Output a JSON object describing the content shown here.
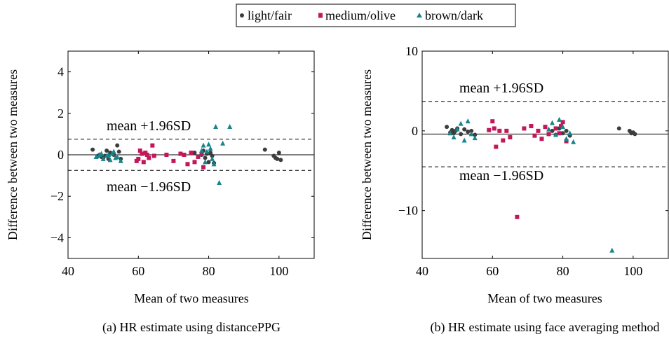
{
  "legend": {
    "items": [
      {
        "label": "light/fair",
        "color": "#3d3d3d",
        "marker": "circle"
      },
      {
        "label": "medium/olive",
        "color": "#c2185b",
        "marker": "square"
      },
      {
        "label": "brown/dark",
        "color": "#17858a",
        "marker": "triangle"
      }
    ],
    "placement": "top-center"
  },
  "chart_data": [
    {
      "type": "scatter",
      "caption": "(a) HR estimate using distancePPG",
      "xlabel": "Mean of two measures",
      "ylabel": "Difference between two measures",
      "xlim": [
        40,
        110
      ],
      "ylim": [
        -5,
        5
      ],
      "xticks": [
        40,
        60,
        80,
        100
      ],
      "yticks": [
        -4,
        -2,
        0,
        2,
        4
      ],
      "grid": false,
      "mean_line": 0,
      "upper_loa": 0.75,
      "lower_loa": -0.75,
      "upper_label": "mean +1.96SD",
      "lower_label": "mean −1.96SD",
      "series": [
        {
          "name": "light/fair",
          "points": [
            [
              47,
              0.25
            ],
            [
              48.5,
              -0.05
            ],
            [
              49,
              0.0
            ],
            [
              49.5,
              -0.1
            ],
            [
              50,
              -0.15
            ],
            [
              50.5,
              -0.05
            ],
            [
              51,
              0.2
            ],
            [
              51.5,
              -0.2
            ],
            [
              52,
              0.1
            ],
            [
              53,
              0.0
            ],
            [
              54,
              0.45
            ],
            [
              54.5,
              0.15
            ],
            [
              55,
              -0.2
            ],
            [
              76,
              0.1
            ],
            [
              77,
              -0.1
            ],
            [
              78,
              0.0
            ],
            [
              78.5,
              0.2
            ],
            [
              79,
              -0.15
            ],
            [
              79.5,
              0.05
            ],
            [
              80,
              -0.35
            ],
            [
              80.5,
              0.1
            ],
            [
              81,
              -0.05
            ],
            [
              81.5,
              -0.4
            ],
            [
              96,
              0.25
            ],
            [
              98.5,
              -0.05
            ],
            [
              99,
              -0.15
            ],
            [
              99.5,
              -0.2
            ],
            [
              100,
              0.1
            ],
            [
              100.5,
              -0.25
            ]
          ]
        },
        {
          "name": "medium/olive",
          "points": [
            [
              59.5,
              -0.3
            ],
            [
              60,
              -0.2
            ],
            [
              60.5,
              0.2
            ],
            [
              61,
              0.05
            ],
            [
              61.5,
              -0.35
            ],
            [
              62,
              0.1
            ],
            [
              62.5,
              0.0
            ],
            [
              63,
              -0.15
            ],
            [
              64,
              0.45
            ],
            [
              64.5,
              -0.05
            ],
            [
              68,
              0.0
            ],
            [
              70,
              -0.3
            ],
            [
              72,
              0.05
            ],
            [
              73,
              0.0
            ],
            [
              74,
              -0.45
            ],
            [
              75,
              0.1
            ],
            [
              76,
              -0.35
            ],
            [
              77,
              -0.1
            ],
            [
              78,
              0.05
            ],
            [
              78.5,
              -0.6
            ]
          ]
        },
        {
          "name": "brown/dark",
          "points": [
            [
              48,
              -0.1
            ],
            [
              49,
              0.0
            ],
            [
              49.5,
              0.05
            ],
            [
              50,
              -0.2
            ],
            [
              51,
              -0.05
            ],
            [
              51.5,
              0.0
            ],
            [
              52,
              -0.25
            ],
            [
              52.5,
              0.05
            ],
            [
              53,
              0.15
            ],
            [
              53.5,
              -0.15
            ],
            [
              54,
              -0.1
            ],
            [
              55,
              -0.3
            ],
            [
              78,
              0.2
            ],
            [
              78.5,
              0.45
            ],
            [
              79,
              -0.35
            ],
            [
              79.5,
              0.15
            ],
            [
              80,
              0.5
            ],
            [
              80.5,
              0.3
            ],
            [
              81,
              -0.2
            ],
            [
              81.5,
              -0.45
            ],
            [
              82,
              1.35
            ],
            [
              83,
              -1.35
            ],
            [
              84,
              0.55
            ],
            [
              86,
              1.35
            ]
          ]
        }
      ]
    },
    {
      "type": "scatter",
      "caption": "(b) HR estimate using face averaging method",
      "xlabel": "Mean of two measures",
      "ylabel": "Difference between two measures",
      "xlim": [
        40,
        110
      ],
      "ylim": [
        -16,
        10
      ],
      "xticks": [
        40,
        60,
        80,
        100
      ],
      "yticks": [
        -10,
        0,
        10
      ],
      "grid": false,
      "mean_line": -0.4,
      "upper_loa": 3.7,
      "lower_loa": -4.5,
      "upper_label": "mean +1.96SD",
      "lower_label": "mean −1.96SD",
      "series": [
        {
          "name": "light/fair",
          "points": [
            [
              47,
              0.5
            ],
            [
              48,
              -0.2
            ],
            [
              48.5,
              0.1
            ],
            [
              49,
              -0.3
            ],
            [
              49.5,
              0.0
            ],
            [
              50,
              0.3
            ],
            [
              51,
              -0.4
            ],
            [
              52,
              0.2
            ],
            [
              53,
              -0.1
            ],
            [
              54,
              0.0
            ],
            [
              55,
              -0.5
            ],
            [
              77,
              0.0
            ],
            [
              78,
              -0.5
            ],
            [
              79,
              0.3
            ],
            [
              80,
              -0.3
            ],
            [
              81,
              0.0
            ],
            [
              82,
              -0.6
            ],
            [
              96,
              0.3
            ],
            [
              99,
              0.0
            ],
            [
              99.5,
              -0.3
            ],
            [
              100,
              -0.2
            ],
            [
              100.5,
              -0.4
            ]
          ]
        },
        {
          "name": "medium/olive",
          "points": [
            [
              59,
              0.1
            ],
            [
              60,
              1.2
            ],
            [
              60.5,
              0.3
            ],
            [
              61,
              -2.0
            ],
            [
              62,
              0.0
            ],
            [
              63,
              -1.2
            ],
            [
              64,
              0.0
            ],
            [
              65,
              -0.8
            ],
            [
              67,
              -10.8
            ],
            [
              69,
              0.3
            ],
            [
              71,
              0.6
            ],
            [
              72,
              -0.6
            ],
            [
              73,
              0.0
            ],
            [
              74,
              -1.0
            ],
            [
              75,
              0.5
            ],
            [
              76,
              -0.4
            ],
            [
              78,
              0.3
            ],
            [
              79,
              -0.3
            ],
            [
              80,
              1.1
            ],
            [
              81,
              -1.3
            ],
            [
              79.5,
              0.6
            ]
          ]
        },
        {
          "name": "brown/dark",
          "points": [
            [
              48,
              -0.3
            ],
            [
              49,
              -0.8
            ],
            [
              50,
              0.2
            ],
            [
              51,
              0.9
            ],
            [
              52,
              -1.2
            ],
            [
              53,
              1.2
            ],
            [
              54,
              -0.4
            ],
            [
              55,
              -0.9
            ],
            [
              76,
              0.2
            ],
            [
              77,
              1.0
            ],
            [
              78,
              -0.5
            ],
            [
              79,
              1.4
            ],
            [
              80,
              0.5
            ],
            [
              81,
              -1.0
            ],
            [
              82,
              -0.3
            ],
            [
              83,
              -1.4
            ],
            [
              94,
              -15.0
            ]
          ]
        }
      ]
    }
  ]
}
